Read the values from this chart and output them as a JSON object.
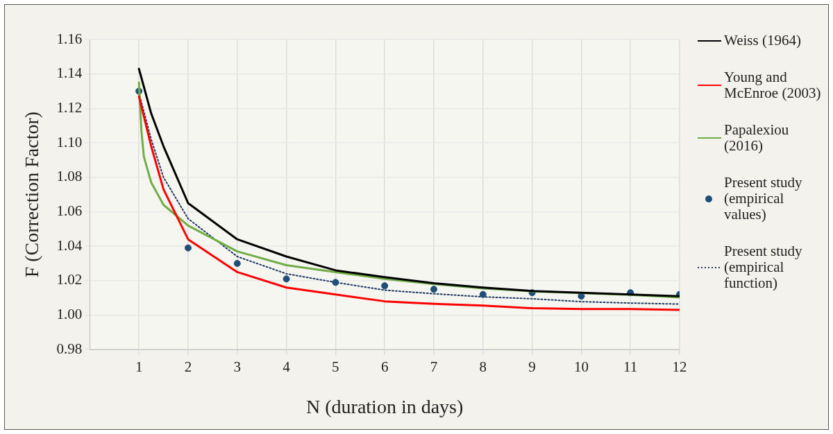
{
  "chart_data": {
    "type": "line",
    "xlabel": "N (duration in days)",
    "ylabel": "F (Correction Factor)",
    "xlim": [
      0,
      12
    ],
    "xticks": [
      1,
      2,
      3,
      4,
      5,
      6,
      7,
      8,
      9,
      10,
      11,
      12
    ],
    "ylim": [
      0.98,
      1.16
    ],
    "yticks": [
      0.98,
      {
        "value": 1,
        "label": "1.00"
      },
      1.02,
      1.04,
      1.06,
      1.08,
      {
        "value": 1.1,
        "label": "1.10"
      },
      1.12,
      1.14,
      1.16
    ],
    "grid": true,
    "legend": "right",
    "series": [
      {
        "name": "Weiss (1964)",
        "type": "line",
        "color": "#000000",
        "line_style": "solid",
        "x": [
          1,
          1.25,
          1.5,
          2,
          3,
          4,
          5,
          6,
          7,
          8,
          9,
          10,
          11,
          12
        ],
        "values": [
          1.143,
          1.117,
          1.098,
          1.065,
          1.044,
          1.034,
          1.026,
          1.022,
          1.0185,
          1.016,
          1.014,
          1.013,
          1.012,
          1.011
        ]
      },
      {
        "name": "Young and McEnroe (2003)",
        "type": "line",
        "color": "#ff0000",
        "line_style": "solid",
        "x": [
          1,
          1.25,
          1.5,
          2,
          3,
          4,
          5,
          6,
          7,
          8,
          9,
          10,
          11,
          12
        ],
        "values": [
          1.127,
          1.098,
          1.073,
          1.044,
          1.025,
          1.016,
          1.012,
          1.008,
          1.0065,
          1.0055,
          1.004,
          1.0035,
          1.0035,
          1.003
        ]
      },
      {
        "name": "Papalexiou (2016)",
        "type": "line",
        "color": "#70ad47",
        "line_style": "solid",
        "x": [
          1,
          1.05,
          1.1,
          1.25,
          1.5,
          2,
          3,
          4,
          5,
          6,
          7,
          8,
          9,
          10,
          11,
          12
        ],
        "values": [
          1.135,
          1.107,
          1.092,
          1.077,
          1.064,
          1.052,
          1.037,
          1.029,
          1.025,
          1.021,
          1.018,
          1.0155,
          1.0138,
          1.0128,
          1.0118,
          1.0103
        ]
      },
      {
        "name": "Present study (empirical values)",
        "type": "scatter",
        "color": "#1f4e79",
        "marker": "circle",
        "x": [
          1,
          2,
          3,
          4,
          5,
          6,
          7,
          8,
          9,
          10,
          11,
          12
        ],
        "values": [
          1.13,
          1.039,
          1.03,
          1.021,
          1.019,
          1.017,
          1.015,
          1.012,
          1.013,
          1.011,
          1.013,
          1.012
        ]
      },
      {
        "name": "Present study (empirical function)",
        "type": "line",
        "color": "#1f3864",
        "line_style": "dotted",
        "x": [
          1,
          1.25,
          1.5,
          2,
          3,
          4,
          5,
          6,
          7,
          8,
          9,
          10,
          11,
          12
        ],
        "values": [
          1.129,
          1.102,
          1.08,
          1.056,
          1.034,
          1.024,
          1.019,
          1.0145,
          1.0124,
          1.0106,
          1.0095,
          1.0078,
          1.007,
          1.0064
        ]
      }
    ]
  }
}
